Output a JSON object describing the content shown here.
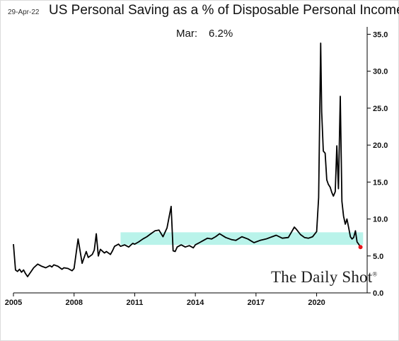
{
  "header": {
    "date": "29-Apr-22",
    "title": "US Personal Saving as a % of Disposable Personal Income"
  },
  "latest": {
    "label": "Mar:",
    "value": "6.2%"
  },
  "brand": {
    "name": "The Daily Shot",
    "mark": "®"
  },
  "colors": {
    "line": "#000000",
    "band": "#b9f3ea",
    "marker": "#e8151b"
  },
  "chart_data": {
    "type": "line",
    "title": "US Personal Saving as a % of Disposable Personal Income",
    "xlabel": "",
    "ylabel": "",
    "x_ticks": [
      "2005",
      "2008",
      "2011",
      "2014",
      "2017",
      "2020"
    ],
    "y_ticks": [
      "0.0",
      "5.0",
      "10.0",
      "15.0",
      "20.0",
      "25.0",
      "30.0",
      "35.0"
    ],
    "xlim": [
      2005.0,
      2022.5
    ],
    "ylim": [
      0,
      36
    ],
    "y_axis_side": "right",
    "grid": false,
    "band": {
      "x_start": 2010.3,
      "x_end": 2022.3,
      "y_low": 6.5,
      "y_high": 8.2
    },
    "last_point": {
      "x": 2022.17,
      "y": 6.2
    },
    "series": [
      {
        "x": [
          2005.0,
          2005.1,
          2005.2,
          2005.3,
          2005.4,
          2005.5,
          2005.6,
          2005.7,
          2005.8,
          2005.9,
          2006.0,
          2006.2,
          2006.4,
          2006.6,
          2006.8,
          2006.9,
          2007.0,
          2007.2,
          2007.4,
          2007.5,
          2007.7,
          2007.9,
          2008.0,
          2008.2,
          2008.4,
          2008.6,
          2008.7,
          2008.9,
          2009.0,
          2009.1,
          2009.2,
          2009.3,
          2009.5,
          2009.6,
          2009.8,
          2009.9,
          2010.0,
          2010.2,
          2010.3,
          2010.5,
          2010.7,
          2010.9,
          2011.0,
          2011.2,
          2011.4,
          2011.6,
          2011.8,
          2012.0,
          2012.2,
          2012.4,
          2012.6,
          2012.8,
          2012.9,
          2013.0,
          2013.1,
          2013.3,
          2013.5,
          2013.7,
          2013.9,
          2014.0,
          2014.2,
          2014.4,
          2014.6,
          2014.8,
          2015.0,
          2015.2,
          2015.5,
          2015.8,
          2016.0,
          2016.3,
          2016.6,
          2016.9,
          2017.2,
          2017.5,
          2017.8,
          2018.0,
          2018.3,
          2018.6,
          2018.9,
          2019.0,
          2019.2,
          2019.4,
          2019.6,
          2019.8,
          2020.0,
          2020.1,
          2020.2,
          2020.25,
          2020.33,
          2020.42,
          2020.5,
          2020.58,
          2020.67,
          2020.75,
          2020.83,
          2020.92,
          2021.0,
          2021.08,
          2021.17,
          2021.25,
          2021.33,
          2021.42,
          2021.5,
          2021.58,
          2021.67,
          2021.75,
          2021.83,
          2021.92,
          2022.0,
          2022.08,
          2022.17
        ],
        "y": [
          6.6,
          3.1,
          2.9,
          3.2,
          2.8,
          3.1,
          2.6,
          2.2,
          2.6,
          3.0,
          3.4,
          3.9,
          3.6,
          3.4,
          3.7,
          3.5,
          3.8,
          3.6,
          3.2,
          3.4,
          3.3,
          3.0,
          3.3,
          7.3,
          4.0,
          5.6,
          4.8,
          5.2,
          5.8,
          8.0,
          5.0,
          5.9,
          5.4,
          5.6,
          5.2,
          5.7,
          6.3,
          6.6,
          6.3,
          6.5,
          6.2,
          6.7,
          6.6,
          6.9,
          7.3,
          7.6,
          8.0,
          8.4,
          8.5,
          7.6,
          8.8,
          11.7,
          5.7,
          5.6,
          6.2,
          6.5,
          6.2,
          6.4,
          6.1,
          6.5,
          6.8,
          7.1,
          7.4,
          7.3,
          7.6,
          8.0,
          7.5,
          7.2,
          7.1,
          7.6,
          7.3,
          6.8,
          7.1,
          7.3,
          7.6,
          7.8,
          7.4,
          7.5,
          8.9,
          8.6,
          7.9,
          7.5,
          7.4,
          7.6,
          8.3,
          12.9,
          33.8,
          24.5,
          19.2,
          18.9,
          15.3,
          14.7,
          14.3,
          13.6,
          13.1,
          13.7,
          19.9,
          14.1,
          26.6,
          12.4,
          10.4,
          9.3,
          10.0,
          8.9,
          7.6,
          7.3,
          7.5,
          8.4,
          6.9,
          6.6,
          6.2
        ]
      }
    ]
  }
}
